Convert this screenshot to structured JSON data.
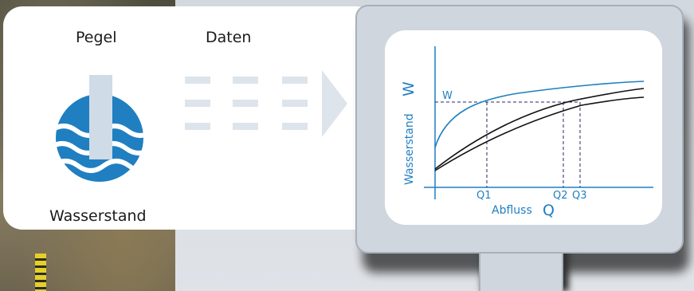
{
  "labels": {
    "pegel": "Pegel",
    "daten": "Daten",
    "wasserstand": "Wasserstand"
  },
  "chart": {
    "y_axis_label": "Wasserstand",
    "y_axis_symbol": "W",
    "x_axis_label": "Abfluss",
    "x_axis_symbol": "Q",
    "w_marker": "W",
    "q_markers": [
      "Q1",
      "Q2",
      "Q3"
    ]
  },
  "colors": {
    "accent_blue": "#1f7fc1",
    "arrow_gray": "#dde4eb",
    "curve_black": "#111111"
  },
  "icons": {
    "water_gauge": "water-level-icon",
    "data_flow": "data-arrow-icon"
  }
}
